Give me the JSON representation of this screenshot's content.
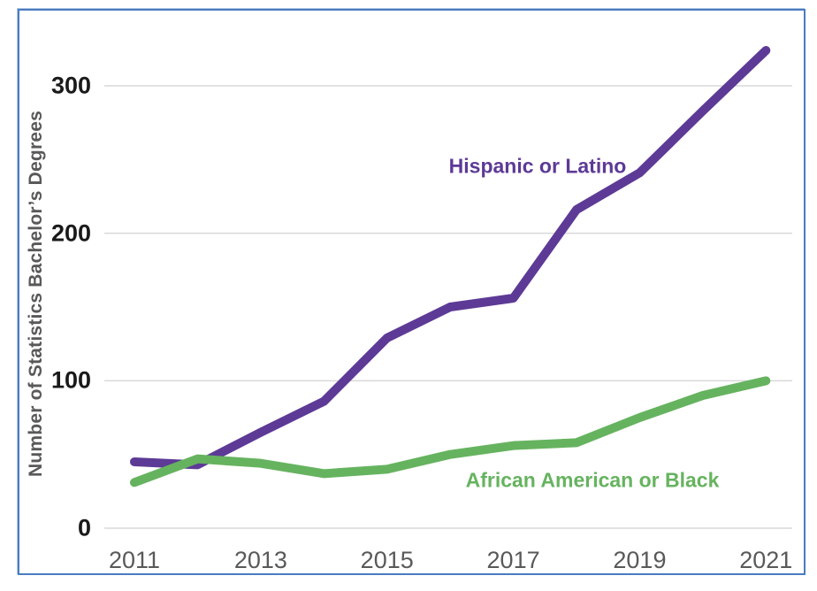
{
  "chart_data": {
    "type": "line",
    "title": "",
    "xlabel": "",
    "ylabel": "Number of Statistics Bachelor’s Degrees",
    "x": [
      2011,
      2012,
      2013,
      2014,
      2015,
      2016,
      2017,
      2018,
      2019,
      2020,
      2021
    ],
    "x_tick_labels": [
      "2011",
      "2013",
      "2015",
      "2017",
      "2019",
      "2021"
    ],
    "x_tick_years": [
      2011,
      2013,
      2015,
      2017,
      2019,
      2021
    ],
    "y_ticks": [
      0,
      100,
      200,
      300
    ],
    "ylim": [
      0,
      300
    ],
    "grid": "horizontal-only",
    "gridline_color": "#d9d9d9",
    "legend_position": "inline-labels-near-lines",
    "series": [
      {
        "name": "Hispanic or Latino",
        "color": "#5d3a96",
        "values": [
          45,
          43,
          65,
          86,
          129,
          150,
          156,
          216,
          241,
          283,
          324
        ]
      },
      {
        "name": "African American or Black",
        "color": "#66b35f",
        "values": [
          31,
          47,
          44,
          37,
          40,
          50,
          56,
          58,
          75,
          90,
          100
        ]
      }
    ]
  },
  "frame": {
    "border_color": "#4a7cc0",
    "background_color": "#ffffff"
  },
  "axis_style": {
    "y_tick_color": "#1a1a1a",
    "x_tick_color": "#595959",
    "axis_title_color": "#595959"
  }
}
